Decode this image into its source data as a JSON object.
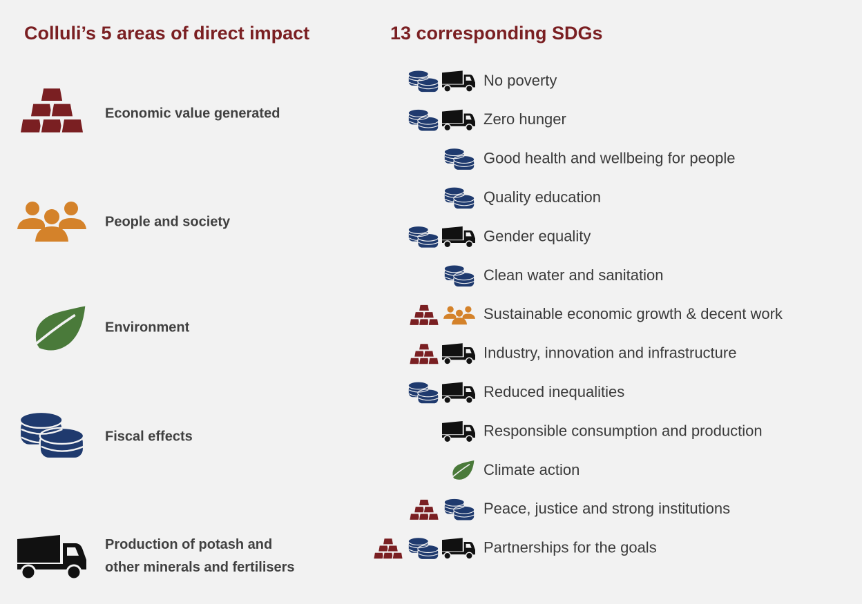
{
  "left_title": "Colluli’s 5 areas of direct impact",
  "right_title": "13 corresponding SDGs",
  "areas": [
    [
      "Economic value generated"
    ],
    [
      "People and society"
    ],
    [
      "Environment"
    ],
    [
      "Fiscal effects"
    ],
    [
      "Production of potash and",
      "other minerals and fertilisers"
    ]
  ],
  "sdgs": [
    "No poverty",
    "Zero hunger",
    "Good health and wellbeing for people",
    "Quality education",
    "Gender equality",
    "Clean water and sanitation",
    "Sustainable economic growth & decent work",
    "Industry, innovation and infrastructure",
    "Reduced inequalities",
    "Responsible consumption and production",
    "Climate action",
    "Peace, justice and strong institutions",
    "Partnerships for the goals"
  ]
}
